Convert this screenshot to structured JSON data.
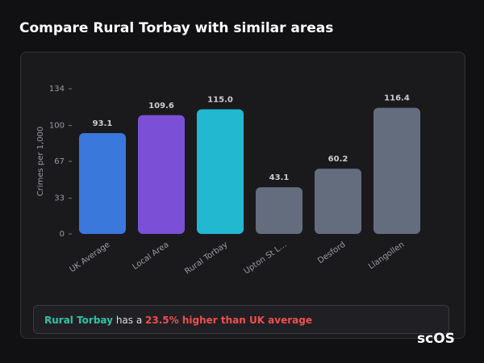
{
  "chart_data": {
    "type": "bar",
    "title": "Compare Rural Torbay with similar areas",
    "y_label": "Crimes per 1,000",
    "categories": [
      "UK Average",
      "Local Area",
      "Rural Torbay",
      "Upton St L...",
      "Desford",
      "Llangollen"
    ],
    "values": [
      93.1,
      109.6,
      115.0,
      43.1,
      60.2,
      116.4
    ],
    "value_labels": [
      "93.1",
      "109.6",
      "115.0",
      "43.1",
      "60.2",
      "116.4"
    ],
    "colors": [
      "#3a78dc",
      "#7b4fd6",
      "#22b9d0",
      "#636d7e",
      "#636d7e",
      "#636d7e"
    ],
    "ylim": [
      0,
      134
    ],
    "yticks": [
      0,
      33,
      67,
      100,
      134
    ]
  },
  "summary": {
    "area": "Rural Torbay",
    "middle": "has a",
    "highlight": "23.5% higher than UK average"
  },
  "logo": "scOS"
}
